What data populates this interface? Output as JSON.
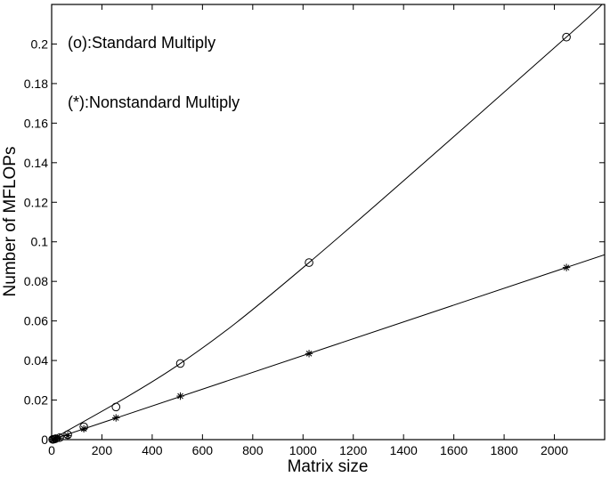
{
  "chart_data": {
    "type": "scatter",
    "title": "",
    "xlabel": "Matrix size",
    "ylabel": "Number of MFLOPs",
    "xlim": [
      0,
      2200
    ],
    "ylim": [
      0,
      0.22
    ],
    "x_ticks": [
      0,
      200,
      400,
      600,
      800,
      1000,
      1200,
      1400,
      1600,
      1800,
      2000
    ],
    "x_tick_labels": [
      "0",
      "200",
      "400",
      "600",
      "800",
      "1000",
      "1200",
      "1400",
      "1600",
      "1800",
      "2000"
    ],
    "y_ticks": [
      0,
      0.02,
      0.04,
      0.06,
      0.08,
      0.1,
      0.12,
      0.14,
      0.16,
      0.18,
      0.2
    ],
    "y_tick_labels": [
      "0",
      "0.02",
      "0.04",
      "0.06",
      "0.08",
      "0.1",
      "0.12",
      "0.14",
      "0.16",
      "0.18",
      "0.2"
    ],
    "grid": false,
    "annotations": [
      "(o):Standard Multiply",
      "(*):Nonstandard Multiply"
    ],
    "series": [
      {
        "marker": "circle",
        "x": [
          4,
          8,
          16,
          32,
          64,
          128,
          256,
          512,
          1024,
          2048
        ],
        "y": [
          0.0001,
          0.0002,
          0.0005,
          0.001,
          0.0025,
          0.0065,
          0.0165,
          0.0385,
          0.0895,
          0.2035
        ]
      },
      {
        "marker": "star",
        "x": [
          4,
          8,
          16,
          32,
          64,
          128,
          256,
          512,
          1024,
          2048
        ],
        "y": [
          0.0001,
          0.0002,
          0.0004,
          0.0008,
          0.002,
          0.0055,
          0.011,
          0.022,
          0.0435,
          0.087
        ]
      }
    ],
    "fit_lines": [
      {
        "series": 0,
        "x": [
          0,
          512,
          1024,
          2048,
          2200
        ],
        "y": [
          0,
          0.0385,
          0.0895,
          0.2035,
          0.2218
        ]
      },
      {
        "series": 1,
        "x": [
          0,
          2200
        ],
        "y": [
          0,
          0.0935
        ]
      }
    ]
  }
}
